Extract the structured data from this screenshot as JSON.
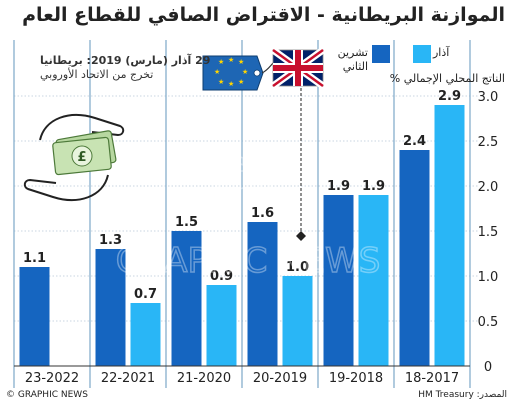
{
  "title": "الموازنة البريطانية - الاقتراض الصافي للقطاع العام",
  "subtitle_date": "29 آذار (مارس) 2019: بريطانيا",
  "subtitle_event": "تخرج من الاتحاد الأوروبي",
  "legend": {
    "march": "آذار",
    "november_line1": "تشرين",
    "november_line2": "الثاني"
  },
  "ylabel": "الناتج المحلي الإجمالي %",
  "footer": {
    "source": "المصدر: HM Treasury",
    "credit": "© GRAPHIC NEWS"
  },
  "colors": {
    "november": "#1565c0",
    "march": "#29b6f6",
    "divider": "#7da8c9"
  },
  "chart_data": {
    "type": "bar",
    "categories": [
      "23-2022",
      "22-2021",
      "21-2020",
      "20-2019",
      "19-2018",
      "18-2017"
    ],
    "series": [
      {
        "name": "تشرين الثاني",
        "values": [
          1.1,
          1.3,
          1.5,
          1.6,
          1.9,
          2.4
        ]
      },
      {
        "name": "آذار",
        "values": [
          null,
          0.7,
          0.9,
          1.0,
          1.9,
          2.9
        ]
      }
    ],
    "value_labels": [
      [
        "1.1",
        "1.3",
        "1.5",
        "1.6",
        "1.9",
        "2.4"
      ],
      [
        "",
        "0.7",
        "0.9",
        "1.0",
        "1.9",
        "2.9"
      ]
    ],
    "ylim": [
      0,
      3.0
    ],
    "yticks": [
      "0",
      "0.5",
      "1.0",
      "1.5",
      "2.0",
      "2.5",
      "3.0"
    ],
    "grid": true,
    "y_axis_position": "right"
  }
}
